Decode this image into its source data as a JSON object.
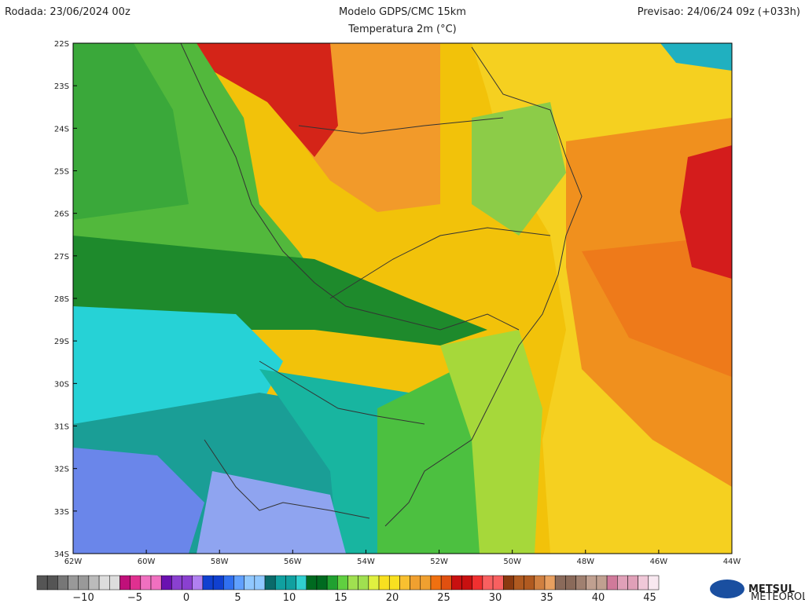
{
  "header": {
    "left": "Rodada: 23/06/2024 00z",
    "center": "Modelo GDPS/CMC 15km",
    "right": "Previsao: 24/06/24 09z (+033h)",
    "subtitle": "Temperatura 2m (°C)"
  },
  "map": {
    "lat_labels": [
      "22S",
      "23S",
      "24S",
      "25S",
      "26S",
      "27S",
      "28S",
      "29S",
      "30S",
      "31S",
      "32S",
      "33S",
      "34S"
    ],
    "lon_labels": [
      "62W",
      "60W",
      "58W",
      "56W",
      "54W",
      "52W",
      "50W",
      "48W",
      "46W",
      "44W"
    ]
  },
  "colorbar": {
    "labels": [
      "−10",
      "−5",
      "0",
      "5",
      "10",
      "15",
      "20",
      "25",
      "30",
      "35",
      "40",
      "45"
    ]
  },
  "logo": {
    "name": "METSUL",
    "tagline": "METEOROLOGIA"
  }
}
